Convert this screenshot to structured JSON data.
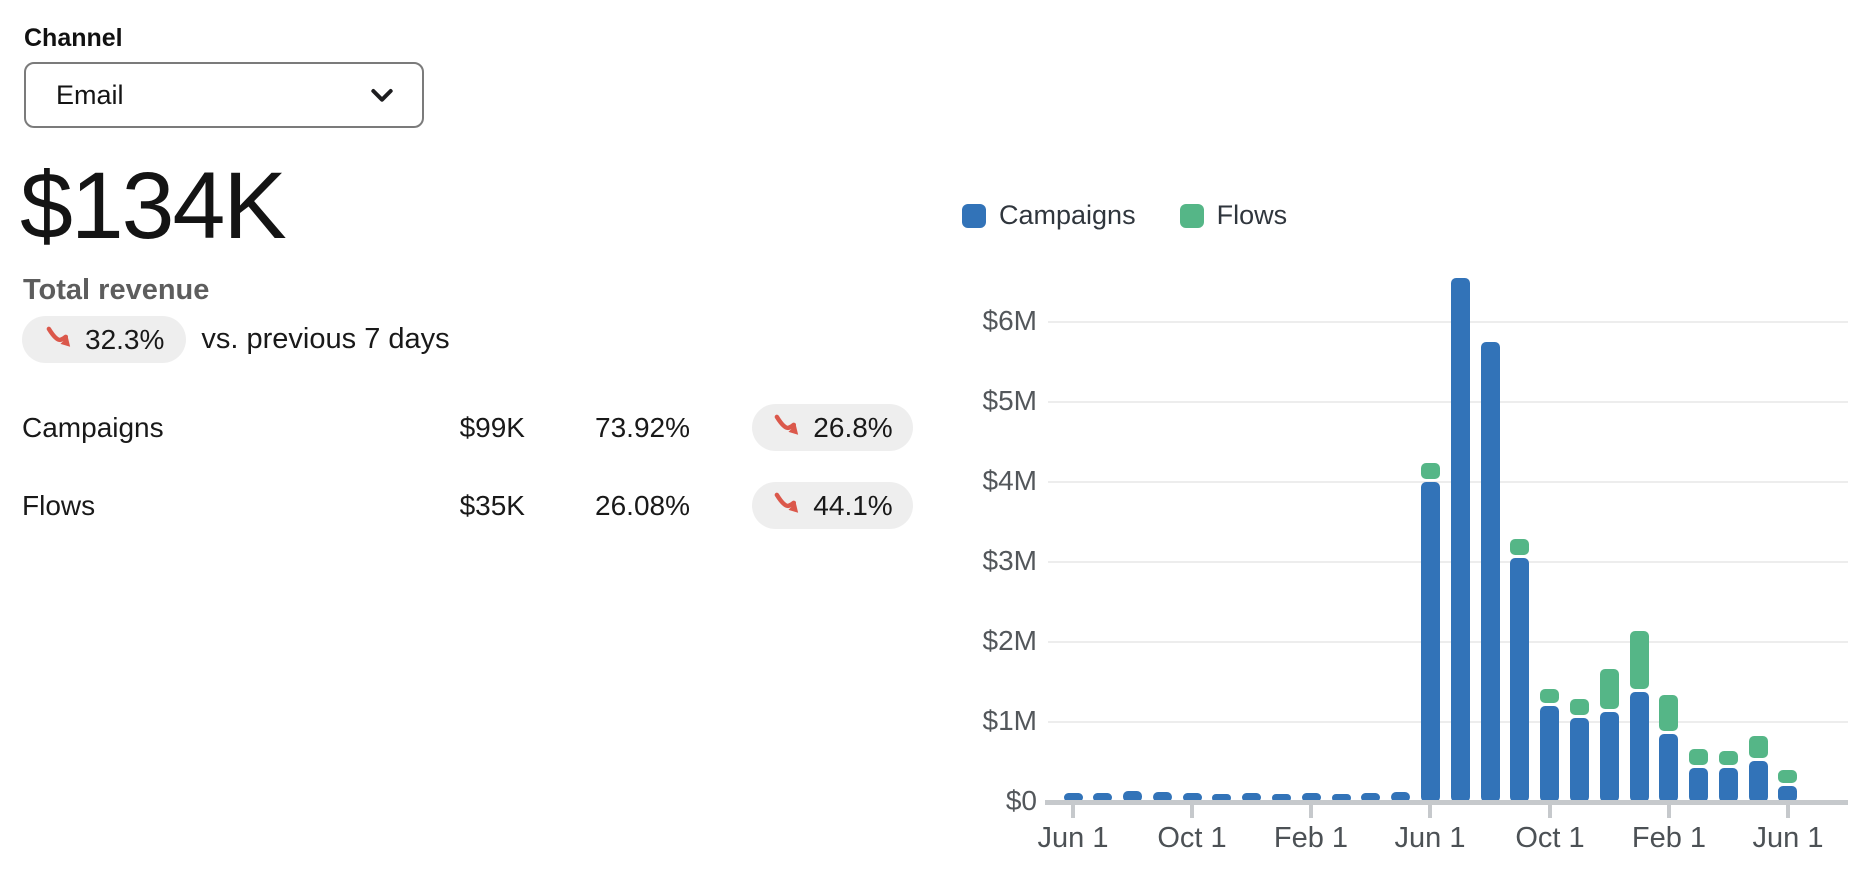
{
  "channel": {
    "label": "Channel",
    "selected": "Email"
  },
  "kpi": {
    "value": "$134K",
    "label": "Total revenue",
    "change": "32.3%",
    "comparison": "vs. previous 7 days"
  },
  "breakdown": {
    "rows": [
      {
        "label": "Campaigns",
        "value": "$99K",
        "share": "73.92%",
        "change": "26.8%"
      },
      {
        "label": "Flows",
        "value": "$35K",
        "share": "26.08%",
        "change": "44.1%"
      }
    ]
  },
  "legend": [
    {
      "label": "Campaigns",
      "color": "#3273b8"
    },
    {
      "label": "Flows",
      "color": "#55b687"
    }
  ],
  "colors": {
    "campaigns_blue": "#3273b8",
    "flows_green": "#55b687",
    "trend_down_red": "#db584b",
    "badge_bg": "#eeeeee",
    "gridline": "#ededed",
    "axis_line": "#c6c9cc",
    "axis_text": "#53575b"
  },
  "chart_data": {
    "type": "bar",
    "stacked": true,
    "unit": "$M",
    "grid": true,
    "legend_position": "top",
    "x": [
      "Jun",
      "Jul",
      "Aug",
      "Sep",
      "Oct",
      "Nov",
      "Dec",
      "Jan",
      "Feb",
      "Mar",
      "Apr",
      "May",
      "Jun",
      "Jul",
      "Aug",
      "Sep",
      "Oct",
      "Nov",
      "Dec",
      "Jan",
      "Feb",
      "Mar",
      "Apr",
      "May",
      "Jun"
    ],
    "series": [
      {
        "name": "Campaigns",
        "color": "#3273b8",
        "values": [
          0.11,
          0.11,
          0.14,
          0.13,
          0.11,
          0.09,
          0.11,
          0.09,
          0.11,
          0.1,
          0.11,
          0.13,
          4.0,
          6.55,
          5.75,
          3.05,
          1.2,
          1.05,
          1.13,
          1.37,
          0.85,
          0.43,
          0.43,
          0.51,
          0.2
        ]
      },
      {
        "name": "Flows",
        "color": "#55b687",
        "values": [
          0,
          0,
          0,
          0,
          0,
          0,
          0,
          0,
          0,
          0,
          0,
          0,
          0.2,
          0,
          0,
          0.2,
          0.18,
          0.2,
          0.5,
          0.73,
          0.45,
          0.2,
          0.18,
          0.27,
          0.16
        ]
      }
    ],
    "ylim": [
      0,
      6.8
    ],
    "y_ticks": [
      "$0",
      "$1M",
      "$2M",
      "$3M",
      "$4M",
      "$5M",
      "$6M"
    ],
    "x_tick_labels": [
      {
        "index": 0,
        "label": "Jun 1"
      },
      {
        "index": 4,
        "label": "Oct 1"
      },
      {
        "index": 8,
        "label": "Feb 1"
      },
      {
        "index": 12,
        "label": "Jun 1"
      },
      {
        "index": 16,
        "label": "Oct 1"
      },
      {
        "index": 20,
        "label": "Feb 1"
      },
      {
        "index": 24,
        "label": "Jun 1"
      }
    ]
  }
}
